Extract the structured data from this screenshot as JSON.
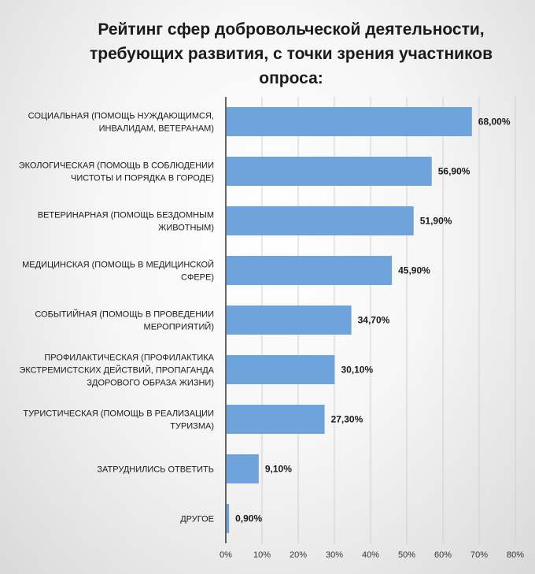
{
  "chart_data": {
    "type": "bar",
    "orientation": "horizontal",
    "title_lines": [
      "Рейтинг сфер добровольческой деятельности,",
      "требующих развития, с точки зрения участников",
      "опроса:"
    ],
    "categories": [
      [
        "СОЦИАЛЬНАЯ  (ПОМОЩЬ НУЖДАЮЩИМСЯ,",
        "ИНВАЛИДАМ,   ВЕТЕРАНАМ)"
      ],
      [
        "ЭКОЛОГИЧЕСКАЯ  (ПОМОЩЬ В СОБЛЮДЕНИИ",
        "ЧИСТОТЫ И ПОРЯДКА  В ГОРОДЕ)"
      ],
      [
        "ВЕТЕРИНАРНАЯ   (ПОМОЩЬ БЕЗДОМНЫМ",
        "ЖИВОТНЫМ)"
      ],
      [
        "МЕДИЦИНСКАЯ   (ПОМОЩЬ В МЕДИЦИНСКОЙ",
        "СФЕРЕ)"
      ],
      [
        "СОБЫТИЙНАЯ  (ПОМОЩЬ В ПРОВЕДЕНИИ",
        "МЕРОПРИЯТИЙ)"
      ],
      [
        "ПРОФИЛАКТИЧЕСКАЯ   (ПРОФИЛАКТИКА",
        "ЭКСТРЕМИСТСКИХ  ДЕЙСТВИЙ,  ПРОПАГАНДА",
        "ЗДОРОВОГО ОБРАЗА ЖИЗНИ)"
      ],
      [
        "ТУРИСТИЧЕСКАЯ   (ПОМОЩЬ В РЕАЛИЗАЦИИ",
        "ТУРИЗМА)"
      ],
      [
        "ЗАТРУДНИЛИСЬ  ОТВЕТИТЬ"
      ],
      [
        "ДРУГОЕ"
      ]
    ],
    "values": [
      68.0,
      56.9,
      51.9,
      45.9,
      34.7,
      30.1,
      27.3,
      9.1,
      0.9
    ],
    "value_labels": [
      "68,00%",
      "56,90%",
      "51,90%",
      "45,90%",
      "34,70%",
      "30,10%",
      "27,30%",
      "9,10%",
      "0,90%"
    ],
    "xlim": [
      0,
      80
    ],
    "x_ticks": [
      "0%",
      "10%",
      "20%",
      "30%",
      "40%",
      "50%",
      "60%",
      "70%",
      "80%"
    ],
    "grid": true,
    "bar_color": "#6fa3dc",
    "legend": "none"
  }
}
